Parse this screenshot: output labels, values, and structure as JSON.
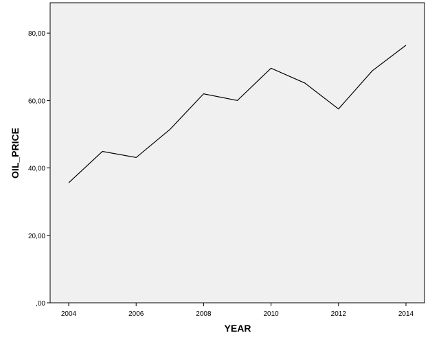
{
  "chart_data": {
    "type": "line",
    "xlabel": "YEAR",
    "ylabel": "OIL_PRICE",
    "xlim": [
      2003.45,
      2014.55
    ],
    "ylim": [
      0,
      89
    ],
    "x_ticks": [
      2004,
      2006,
      2008,
      2010,
      2012,
      2014
    ],
    "x_tick_labels": [
      "2004",
      "2006",
      "2008",
      "2010",
      "2012",
      "2014"
    ],
    "y_ticks": [
      0,
      20,
      40,
      60,
      80
    ],
    "y_tick_labels": [
      ",00",
      "20,00",
      "40,00",
      "60,00",
      "80,00"
    ],
    "grid": false,
    "series": [
      {
        "x": [
          2004,
          2005,
          2006,
          2007,
          2008,
          2009,
          2010,
          2011,
          2012,
          2013,
          2014
        ],
        "values": [
          35.6,
          44.9,
          43.1,
          51.4,
          62.0,
          60.0,
          69.6,
          65.2,
          57.5,
          68.8,
          76.4
        ]
      }
    ],
    "colors": {
      "plot_background": "#f0f0f0",
      "line": "#000000",
      "frame": "#000000"
    }
  }
}
